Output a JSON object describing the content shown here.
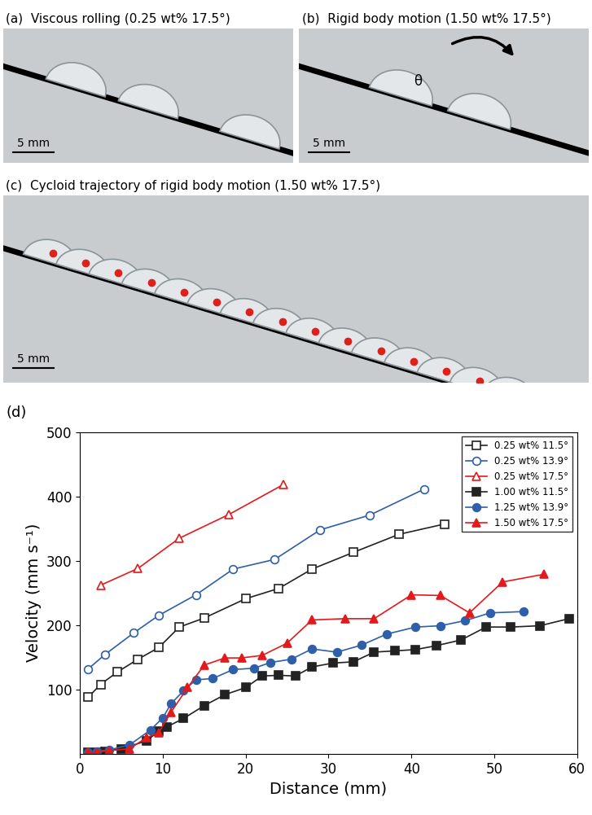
{
  "panels": [
    {
      "label": "(a)",
      "title": "Viscous rolling (0.25 wt% 17.5°)",
      "scale_bar": "5 mm"
    },
    {
      "label": "(b)",
      "title": "Rigid body motion (1.50 wt% 17.5°)",
      "scale_bar": "5 mm",
      "annotation": "θ"
    },
    {
      "label": "(c)",
      "title": "Cycloid trajectory of rigid body motion (1.50 wt% 17.5°)",
      "scale_bar": "5 mm"
    }
  ],
  "chart_data": {
    "type": "line",
    "title": "(d)",
    "x_label": "Distance (mm)",
    "y_label": "Velocity (mm s⁻¹)",
    "xlim": [
      0,
      60
    ],
    "xticks": [
      0,
      10,
      20,
      30,
      40,
      50,
      60
    ],
    "ylim": [
      0,
      500
    ],
    "yticks": [
      100,
      200,
      300,
      400,
      500
    ],
    "grid": false,
    "legend": "upper right",
    "series": [
      {
        "name": "0.25 wt% 11.5°",
        "color": "#222222",
        "marker": "open_square",
        "line_style": "solid",
        "x": [
          1,
          2.5,
          4.5,
          7,
          9.5,
          12,
          15,
          20,
          24,
          28,
          33,
          38.5,
          44
        ],
        "values": [
          88,
          108,
          127,
          147,
          165,
          197,
          211,
          241,
          257,
          287,
          313,
          341,
          357
        ]
      },
      {
        "name": "0.25 wt% 13.9°",
        "color": "#2e5fa8",
        "marker": "open_circle",
        "line_style": "solid",
        "x": [
          1,
          3,
          6.5,
          9.5,
          14,
          18.5,
          23.5,
          29,
          35,
          41.5
        ],
        "values": [
          132,
          154,
          188,
          215,
          247,
          287,
          302,
          348,
          371,
          411
        ]
      },
      {
        "name": "0.25 wt% 17.5°",
        "color": "#e31a1c",
        "marker": "open_triangle",
        "line_style": "solid",
        "x": [
          2.5,
          7,
          12,
          18,
          24.5
        ],
        "values": [
          262,
          288,
          335,
          372,
          418
        ]
      },
      {
        "name": "1.00 wt% 11.5°",
        "color": "#222222",
        "marker": "filled_square",
        "line_style": "solid",
        "x": [
          1,
          2,
          3,
          5,
          8,
          9.5,
          10.5,
          12.5,
          15,
          17.5,
          20,
          22,
          24,
          26,
          28,
          30.5,
          33,
          35.5,
          38,
          40.5,
          43,
          46,
          49,
          52,
          55.5,
          59
        ],
        "values": [
          3,
          3,
          4,
          8,
          20,
          35,
          42,
          55,
          75,
          92,
          103,
          121,
          122,
          121,
          135,
          141,
          143,
          158,
          160,
          162,
          168,
          177,
          197,
          197,
          199,
          210
        ]
      },
      {
        "name": "1.25 wt% 13.9°",
        "color": "#2e5fa8",
        "marker": "filled_circle",
        "line_style": "solid",
        "x": [
          1,
          2,
          3.5,
          6,
          8.5,
          10,
          11,
          12.5,
          14,
          16,
          18.5,
          21,
          23,
          25.5,
          28,
          31,
          34,
          37,
          40.5,
          43.5,
          46.5,
          49.5,
          53.5
        ],
        "values": [
          3,
          4,
          6,
          14,
          37,
          56,
          78,
          98,
          115,
          117,
          131,
          133,
          142,
          147,
          163,
          158,
          169,
          186,
          197,
          199,
          207,
          219,
          221
        ]
      },
      {
        "name": "1.50 wt% 17.5°",
        "color": "#e31a1c",
        "marker": "filled_triangle",
        "line_style": "solid",
        "x": [
          1,
          2,
          3.5,
          6,
          8,
          9.5,
          11,
          13,
          15,
          17.5,
          19.5,
          22,
          25,
          28,
          32,
          35.5,
          40,
          43.5,
          47,
          51,
          56
        ],
        "values": [
          2,
          3,
          5,
          8,
          25,
          33,
          65,
          103,
          138,
          149,
          149,
          153,
          172,
          208,
          210,
          210,
          247,
          246,
          219,
          267,
          279
        ]
      }
    ]
  }
}
